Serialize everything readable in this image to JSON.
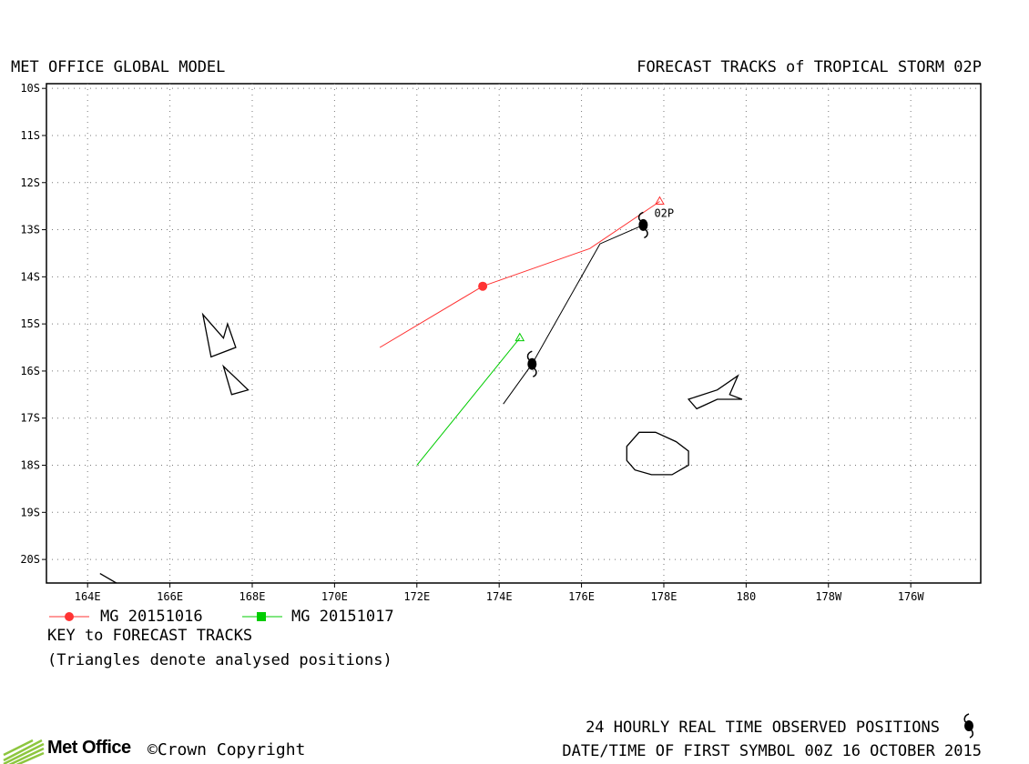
{
  "header": {
    "left_title": "MET OFFICE GLOBAL MODEL",
    "right_title": "FORECAST TRACKS of TROPICAL STORM 02P"
  },
  "map": {
    "lat_labels": [
      "10S",
      "11S",
      "12S",
      "13S",
      "14S",
      "15S",
      "16S",
      "17S",
      "18S",
      "19S",
      "20S"
    ],
    "lon_labels": [
      "164E",
      "166E",
      "168E",
      "170E",
      "172E",
      "174E",
      "176E",
      "178E",
      "180",
      "178W",
      "176W"
    ],
    "storm_label": "02P",
    "lon_range": [
      163,
      185.7
    ],
    "lat_range": [
      -20.5,
      -9.9
    ],
    "grid": "dotted",
    "tracks": [
      {
        "name": "MG 20151016",
        "color": "#ff3333",
        "points": [
          [
            177.9,
            -12.4
          ],
          [
            176.2,
            -13.4
          ],
          [
            173.6,
            -14.2
          ],
          [
            171.1,
            -15.5
          ]
        ],
        "marker": "circle",
        "marker_points": [
          [
            173.6,
            -14.2
          ]
        ],
        "start_marker": "triangle"
      },
      {
        "name": "MG 20151017",
        "color": "#00cc00",
        "points": [
          [
            174.5,
            -15.3
          ],
          [
            172.0,
            -18.0
          ]
        ],
        "marker": "square",
        "marker_points": [],
        "start_marker": "triangle"
      }
    ],
    "observed_track": {
      "color": "#000000",
      "points": [
        [
          177.5,
          -12.9
        ],
        [
          176.45,
          -13.3
        ],
        [
          174.8,
          -15.85
        ],
        [
          174.1,
          -16.7
        ]
      ],
      "symbols": [
        [
          177.5,
          -12.9
        ],
        [
          174.8,
          -15.85
        ]
      ]
    },
    "islands": [
      [
        [
          166.8,
          -14.8
        ],
        [
          167.0,
          -15.7
        ],
        [
          167.6,
          -15.5
        ],
        [
          167.4,
          -15.0
        ],
        [
          167.3,
          -15.3
        ],
        [
          167.1,
          -15.1
        ]
      ],
      [
        [
          167.3,
          -15.9
        ],
        [
          167.5,
          -16.5
        ],
        [
          167.9,
          -16.4
        ]
      ],
      [
        [
          178.8,
          -16.8
        ],
        [
          178.6,
          -16.6
        ],
        [
          179.3,
          -16.4
        ],
        [
          179.8,
          -16.1
        ],
        [
          179.6,
          -16.5
        ],
        [
          179.9,
          -16.6
        ],
        [
          179.3,
          -16.6
        ]
      ],
      [
        [
          177.4,
          -17.3
        ],
        [
          177.8,
          -17.3
        ],
        [
          178.3,
          -17.5
        ],
        [
          178.6,
          -17.7
        ],
        [
          178.6,
          -18.0
        ],
        [
          178.2,
          -18.2
        ],
        [
          177.7,
          -18.2
        ],
        [
          177.3,
          -18.1
        ],
        [
          177.1,
          -17.9
        ],
        [
          177.1,
          -17.6
        ]
      ],
      [
        [
          164.3,
          -20.3
        ],
        [
          164.7,
          -20.5
        ]
      ]
    ]
  },
  "legend": {
    "items": [
      {
        "label": "MG 20151016",
        "color": "#ff3333",
        "marker": "circle"
      },
      {
        "label": "MG 20151017",
        "color": "#00cc00",
        "marker": "square"
      }
    ],
    "key_title": "KEY to FORECAST TRACKS",
    "triangle_note": "(Triangles denote analysed positions)"
  },
  "footer": {
    "logo_text": "Met Office",
    "copyright": "©Crown Copyright",
    "observed_note": "24 HOURLY REAL TIME OBSERVED POSITIONS",
    "datetime_note": "DATE/TIME OF FIRST SYMBOL 00Z 16 OCTOBER 2015"
  }
}
